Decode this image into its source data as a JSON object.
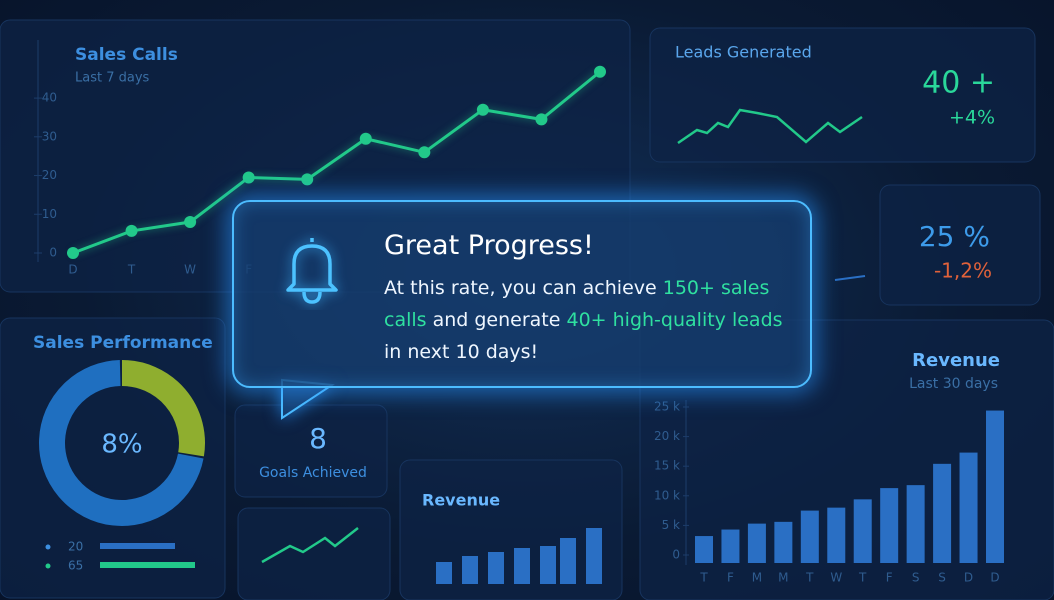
{
  "sales_calls": {
    "title": "Sales Calls",
    "subtitle": "Last 7 days",
    "categories": [
      "D",
      "T",
      "W",
      "F",
      null,
      null,
      null,
      null,
      null,
      null
    ],
    "values": [
      0,
      5.7,
      8,
      19.5,
      19,
      29.5,
      26,
      37,
      34.5,
      46.8
    ],
    "ylim": [
      0,
      55
    ],
    "yticks": [
      0,
      10,
      20,
      30,
      40
    ],
    "color": "#22c98a"
  },
  "leads": {
    "title": "Leads Generated",
    "value": "40 +",
    "change": "+4%"
  },
  "rate": {
    "value": "25 %",
    "change": "-1,2%"
  },
  "notification": {
    "title": "Great Progress!",
    "message": [
      "At this rate, you can achieve ",
      "150+ sales calls",
      " and generate ",
      "40+ high-quality leads",
      " in next 10 days!"
    ]
  },
  "sales_performance": {
    "title": "Sales Performance",
    "center": "8%",
    "segments": [
      72,
      28
    ],
    "colors": [
      "#1f6fc0",
      "#8fae2f"
    ],
    "legend": [
      "20",
      "65"
    ]
  },
  "goals": {
    "value": "8",
    "label": "Goals Achieved"
  },
  "revenue_small": {
    "title": "Revenue"
  },
  "revenue": {
    "title": "Revenue",
    "subtitle": "Last 30 days",
    "categories": [
      "T",
      "F",
      "M",
      "M",
      "T",
      "W",
      "T",
      "F",
      "S",
      "S",
      "D",
      "D"
    ],
    "values": [
      3.2,
      4.3,
      5.3,
      5.6,
      7.5,
      8,
      9.4,
      11.3,
      11.8,
      15.4,
      17.3,
      24.4
    ],
    "ylim": [
      0,
      25
    ],
    "yticks": [
      0,
      {
        "value": 5,
        "label": "5 k"
      },
      {
        "value": 10,
        "label": "10 k"
      },
      {
        "value": 15,
        "label": "15 k"
      },
      {
        "value": 20,
        "label": "20 k"
      },
      {
        "value": 25,
        "label": "25 k"
      }
    ],
    "color": "#2a6fc4"
  }
}
